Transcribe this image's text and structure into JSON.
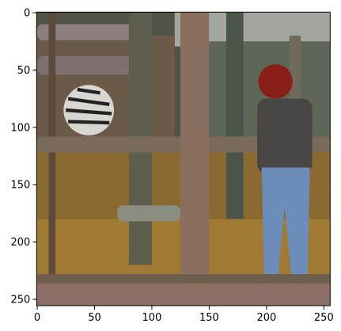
{
  "chart_data": {
    "type": "image",
    "xlim": [
      -0.5,
      255.5
    ],
    "ylim": [
      255.5,
      -0.5
    ],
    "xticks": [
      0,
      50,
      100,
      150,
      200,
      250
    ],
    "yticks": [
      0,
      50,
      100,
      150,
      200,
      250
    ]
  }
}
